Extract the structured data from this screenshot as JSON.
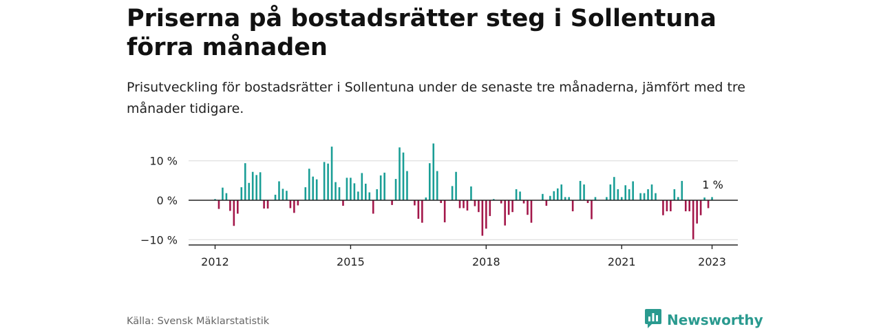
{
  "title": "Priserna på bostadsrätter steg i Sollentuna förra månaden",
  "subtitle": "Prisutveckling för bostadsrätter i Sollentuna under de senaste tre månaderna, jämfört med tre månader tidigare.",
  "source": "Källa: Svensk Mäklarstatistik",
  "brand": {
    "name": "Newsworthy",
    "icon": "newsworthy-logo-icon"
  },
  "colors": {
    "positive": "#1a9e96",
    "negative": "#a3174a",
    "grid": "#dddddd",
    "axis": "#222222",
    "brand": "#2a9a8f"
  },
  "chart_data": {
    "type": "bar",
    "x_unit": "month",
    "ylim": [
      -12,
      12
    ],
    "yticks": [
      10,
      0,
      -10
    ],
    "ytick_labels": [
      "10 %",
      "0 %",
      "−10 %"
    ],
    "xticks": [
      "2012-01",
      "2015-01",
      "2018-01",
      "2021-01",
      "2023-01"
    ],
    "xtick_labels": [
      "2012",
      "2015",
      "2018",
      "2021",
      "2023"
    ],
    "grid": true,
    "annotation": {
      "x": "2023-01",
      "text": "1 %"
    },
    "series": [
      {
        "values": [
          0.3,
          -2.2,
          3.2,
          1.8,
          -2.7,
          -6.5,
          -3.4,
          3.3,
          9.4,
          4.4,
          7.2,
          6.4,
          7.1,
          -2.1,
          -2.1,
          0.0,
          1.4,
          4.8,
          2.9,
          2.4,
          -2.0,
          -3.2,
          -1.3,
          0.0,
          3.3,
          8.0,
          6.0,
          5.3,
          0.0,
          9.7,
          9.3,
          13.6,
          4.6,
          3.3,
          -1.4,
          5.7,
          5.7,
          4.3,
          2.2,
          6.9,
          4.2,
          2.0,
          -3.4,
          2.8,
          6.3,
          7.0,
          0.0,
          -1.2,
          5.4,
          13.4,
          12.1,
          7.4,
          0.0,
          -1.3,
          -4.7,
          -5.7,
          0.7,
          9.4,
          14.4,
          7.4,
          -0.7,
          -5.6,
          0.0,
          3.6,
          7.2,
          -2.0,
          -2.0,
          -2.6,
          3.5,
          -1.5,
          -3.0,
          -9.0,
          -7.2,
          -4.0,
          0.3,
          0.0,
          -0.8,
          -6.4,
          -3.7,
          -3.0,
          2.8,
          2.2,
          -0.8,
          -3.7,
          -5.7,
          0.0,
          0.0,
          1.6,
          -1.4,
          1.1,
          2.3,
          3.0,
          4.0,
          0.8,
          0.8,
          -2.8,
          0.0,
          4.9,
          4.0,
          -0.7,
          -4.8,
          0.8,
          0.0,
          0.0,
          0.8,
          4.0,
          5.9,
          2.8,
          0.8,
          3.8,
          2.8,
          4.8,
          0.0,
          1.8,
          1.8,
          2.8,
          4.0,
          1.8,
          0.0,
          -3.8,
          -2.8,
          -2.8,
          2.8,
          0.8,
          4.9,
          -2.8,
          -2.8,
          -9.9,
          -5.9,
          -3.8,
          0.7,
          -2.0,
          0.8
        ]
      }
    ],
    "start": "2012-01"
  }
}
